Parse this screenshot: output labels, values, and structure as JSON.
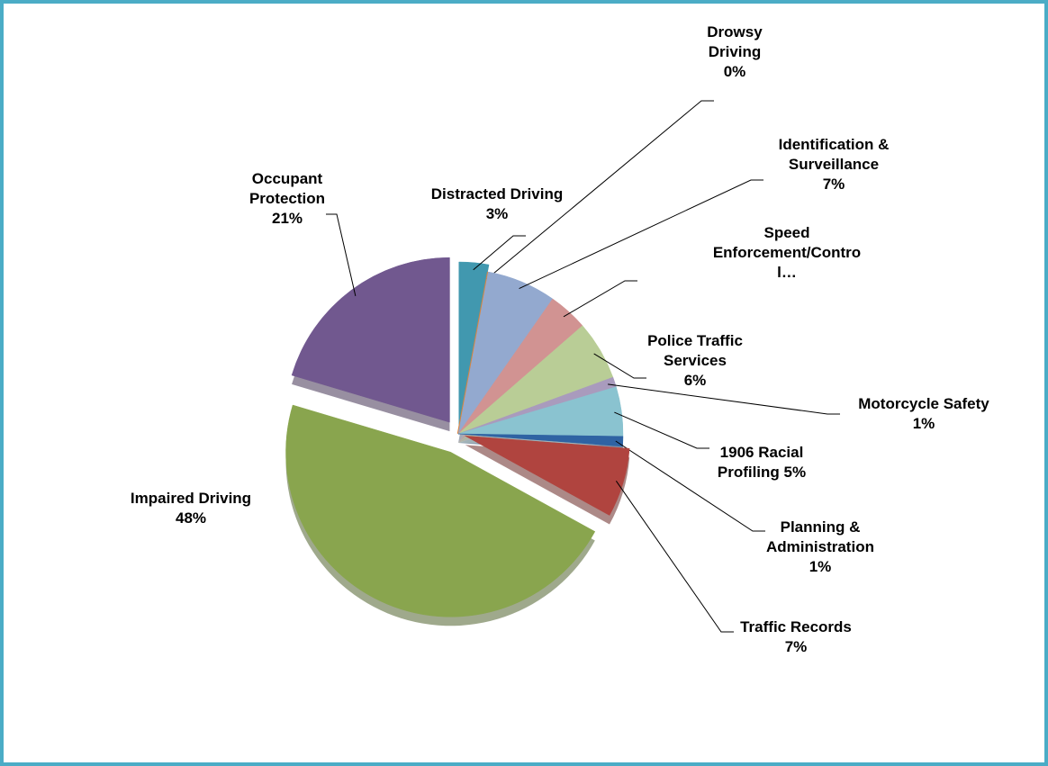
{
  "chart_data": {
    "type": "pie",
    "categories": [
      "Distracted Driving",
      "Drowsy Driving",
      "Identification & Surveillance",
      "Speed Enforcement/Contro l…",
      "Police Traffic Services",
      "Motorcycle Safety",
      "1906 Racial Profiling",
      "Planning & Administration",
      "Traffic Records",
      "Impaired Driving",
      "Occupant Protection"
    ],
    "values": [
      3,
      0,
      7,
      4,
      6,
      1,
      5,
      1,
      7,
      48,
      21
    ],
    "value_labels": [
      "3%",
      "0%",
      "7%",
      null,
      "6%",
      "1%",
      "5%",
      "1%",
      "7%",
      "48%",
      "21%"
    ],
    "colors": [
      "#4198af",
      "#db843d",
      "#93a9cf",
      "#d19392",
      "#b9cd96",
      "#a99bbd",
      "#8ac3d0",
      "#2f63a3",
      "#b0443f",
      "#89a54e",
      "#71588f"
    ]
  }
}
